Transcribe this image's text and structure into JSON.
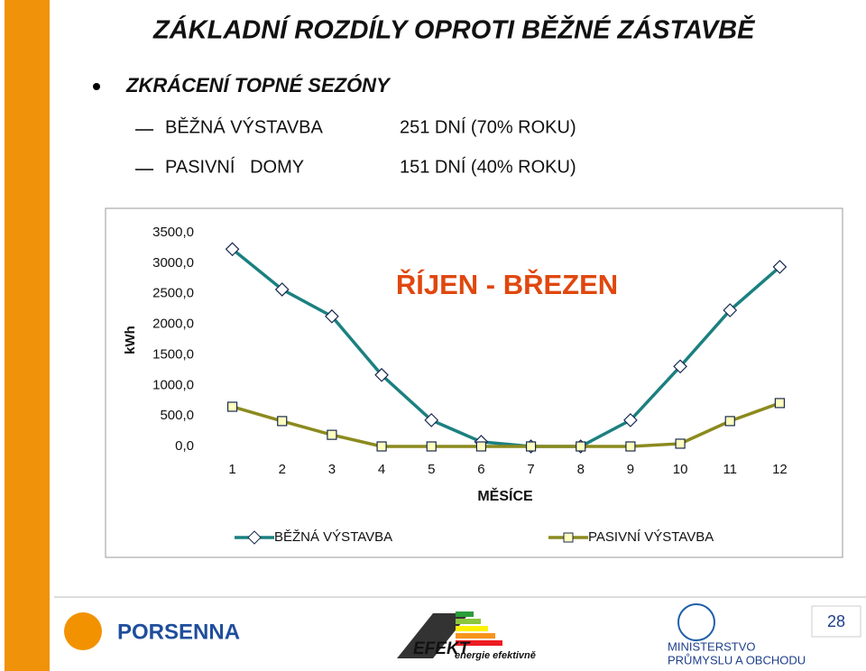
{
  "header": {
    "title": "ZÁKLADNÍ ROZDÍLY OPROTI BĚŽNÉ ZÁSTAVBĚ"
  },
  "bullets": [
    {
      "text": "ZKRÁCENÍ TOPNÉ SEZÓNY",
      "items": [
        {
          "label": "BĚŽNÁ VÝSTAVBA",
          "detail": "251 DNÍ (70% ROKU)"
        },
        {
          "label": "PASIVNÍ   DOMY",
          "detail": "151 DNÍ (40% ROKU)"
        }
      ]
    }
  ],
  "chart_data": {
    "type": "line",
    "annotation": "ŘÍJEN - BŘEZEN",
    "xlabel": "MĚSÍCE",
    "ylabel": "kWh",
    "categories": [
      "1",
      "2",
      "3",
      "4",
      "5",
      "6",
      "7",
      "8",
      "9",
      "10",
      "11",
      "12"
    ],
    "series": [
      {
        "name": "BĚŽNÁ VÝSTAVBA",
        "color": "#1b8080",
        "marker": "diamond",
        "values": [
          3230,
          2570,
          2130,
          1170,
          430,
          75,
          0,
          0,
          430,
          1310,
          2230,
          2940
        ]
      },
      {
        "name": "PASIVNÍ VÝSTAVBA",
        "color": "#8c8a1e",
        "marker": "square",
        "values": [
          650,
          415,
          190,
          0,
          0,
          0,
          0,
          0,
          0,
          45,
          415,
          710
        ]
      }
    ],
    "ylim": [
      0,
      3500
    ],
    "yticks": [
      {
        "value": 0,
        "label": "0,0"
      },
      {
        "value": 500,
        "label": "500,0"
      },
      {
        "value": 1000,
        "label": "1000,0"
      },
      {
        "value": 1500,
        "label": "1500,0"
      },
      {
        "value": 2000,
        "label": "2000,0"
      },
      {
        "value": 2500,
        "label": "2500,0"
      },
      {
        "value": 3000,
        "label": "3000,0"
      },
      {
        "value": 3500,
        "label": "3500,0"
      }
    ],
    "grid": false,
    "legend": "bottom"
  },
  "footer": {
    "page": "28",
    "logos": [
      "PORSENNA",
      "EFEKT",
      "energie efektivně",
      "MINISTERSTVO",
      "PRŮMYSLU A OBCHODU"
    ]
  }
}
